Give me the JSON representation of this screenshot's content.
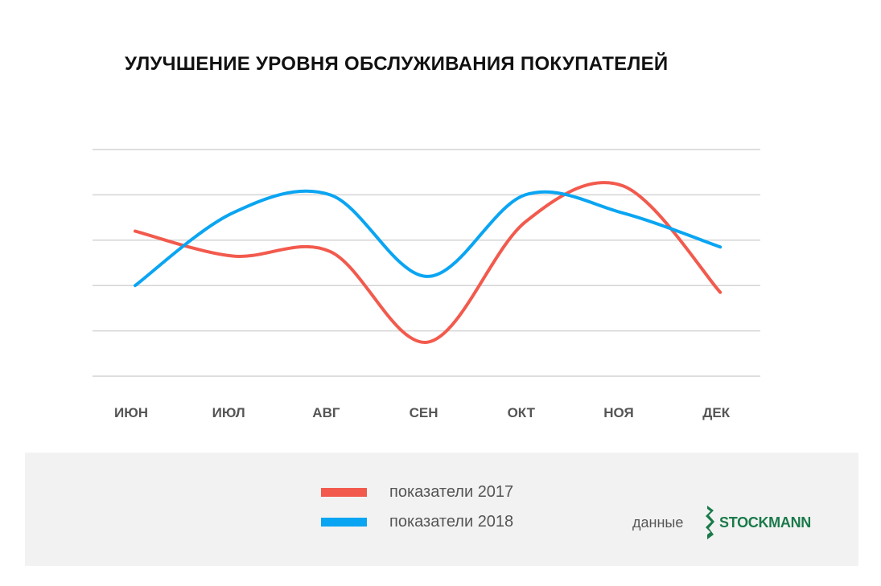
{
  "chart_data": {
    "type": "line",
    "title": "УЛУЧШЕНИЕ УРОВНЯ ОБСЛУЖИВАНИЯ ПОКУПАТЕЛЕЙ",
    "categories": [
      "ИЮН",
      "ИЮЛ",
      "АВГ",
      "СЕН",
      "ОКТ",
      "НОЯ",
      "ДЕК"
    ],
    "ylim": [
      0,
      5
    ],
    "grid": true,
    "series": [
      {
        "name": "показатели 2017",
        "color": "#f25a4d",
        "values": [
          3.2,
          2.65,
          2.75,
          0.75,
          3.4,
          4.2,
          1.85
        ]
      },
      {
        "name": "показатели 2018",
        "color": "#0aa5f2",
        "values": [
          2.0,
          3.6,
          4.0,
          2.2,
          4.0,
          3.6,
          2.85
        ]
      }
    ],
    "legend_position": "bottom-center"
  },
  "footer": {
    "source_label": "данные",
    "logo_text": "STOCKMANN"
  }
}
